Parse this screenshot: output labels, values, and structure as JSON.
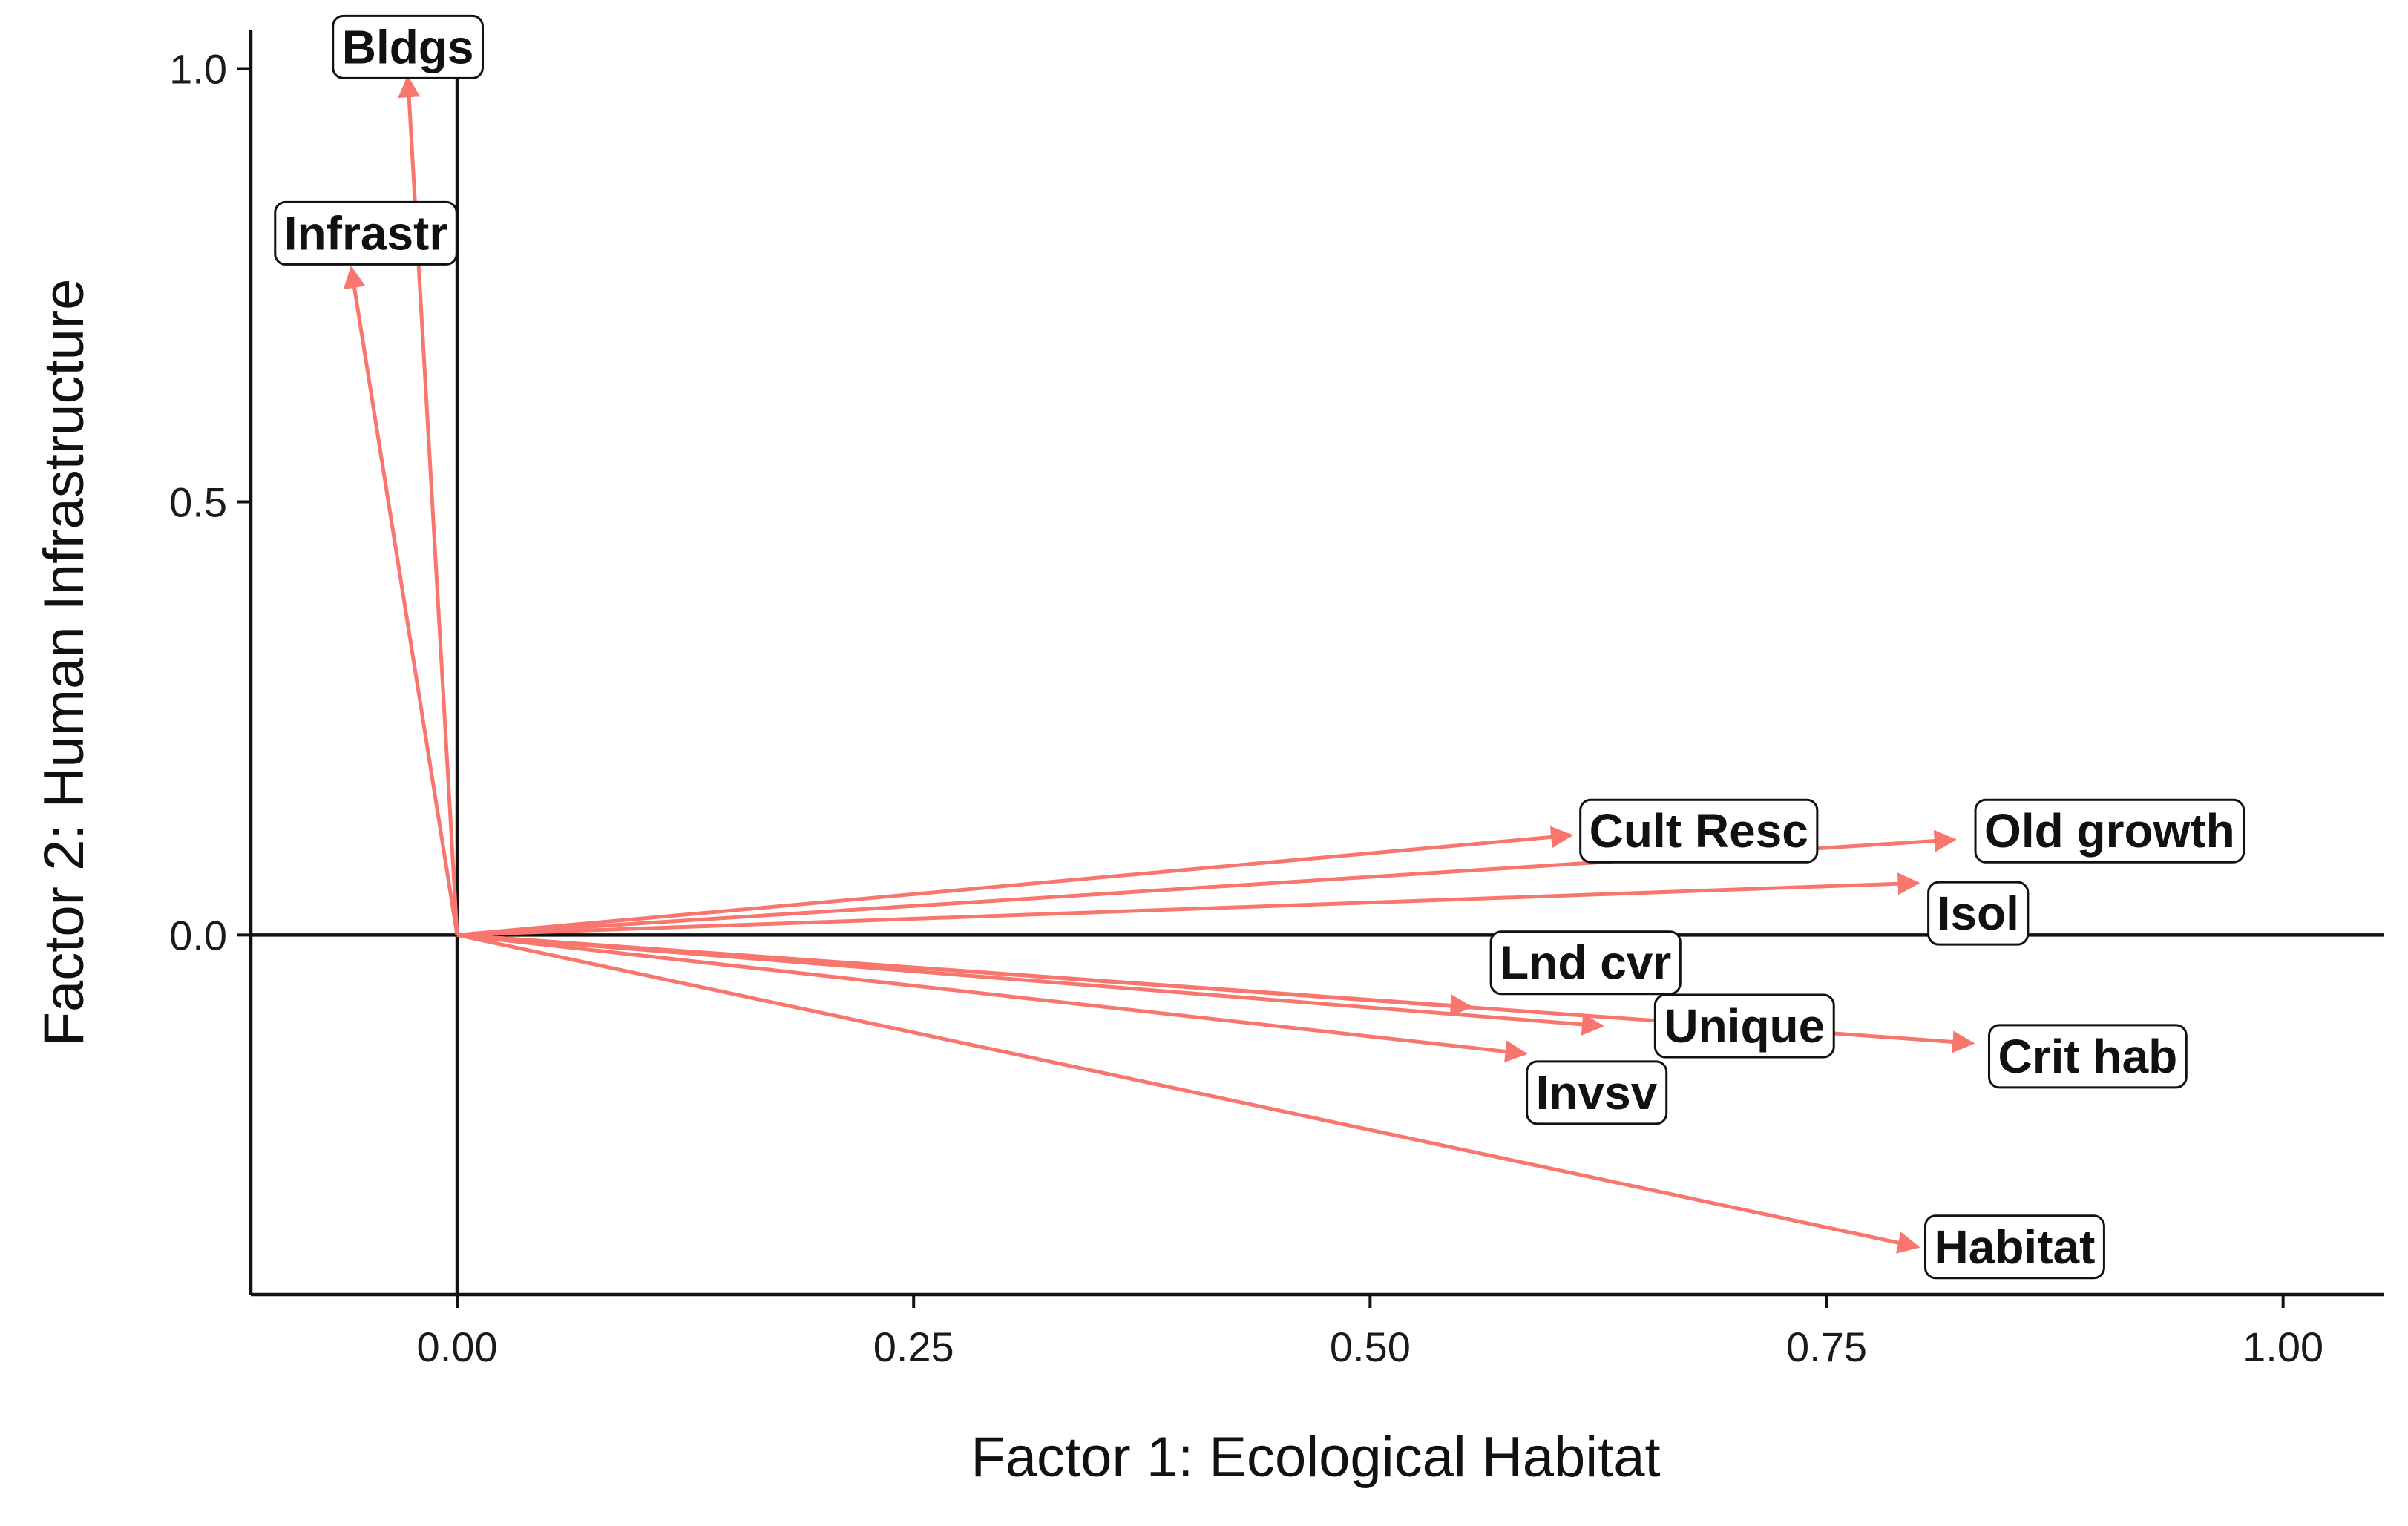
{
  "chart_data": {
    "type": "biplot",
    "title": "",
    "xlabel": "Factor 1: Ecological Habitat",
    "ylabel": "Factor 2: Human Infrastructure",
    "xlim": [
      -0.113,
      1.055
    ],
    "ylim": [
      -0.415,
      1.045
    ],
    "xticks": [
      0.0,
      0.25,
      0.5,
      0.75,
      1.0
    ],
    "xtick_labels": [
      "0.00",
      "0.25",
      "0.50",
      "0.75",
      "1.00"
    ],
    "yticks": [
      0.0,
      0.5,
      1.0
    ],
    "ytick_labels": [
      "0.0",
      "0.5",
      "1.0"
    ],
    "grid": false,
    "reference_lines": [
      "x = 0",
      "y = 0"
    ],
    "arrow_color": "#f8766d",
    "vectors": [
      {
        "label": "Bldgs",
        "x": -0.027,
        "y": 0.99,
        "label_x": -0.027,
        "label_y": 1.025
      },
      {
        "label": "Infrastr",
        "x": -0.058,
        "y": 0.77,
        "label_x": -0.05,
        "label_y": 0.81
      },
      {
        "label": "Cult Resc",
        "x": 0.61,
        "y": 0.115,
        "label_x": 0.68,
        "label_y": 0.12
      },
      {
        "label": "Old growth",
        "x": 0.82,
        "y": 0.11,
        "label_x": 0.905,
        "label_y": 0.12
      },
      {
        "label": "Isol",
        "x": 0.8,
        "y": 0.06,
        "label_x": 0.833,
        "label_y": 0.025
      },
      {
        "label": "Lnd cvr",
        "x": 0.555,
        "y": -0.083,
        "label_x": 0.618,
        "label_y": -0.032
      },
      {
        "label": "Unique",
        "x": 0.627,
        "y": -0.105,
        "label_x": 0.705,
        "label_y": -0.105
      },
      {
        "label": "Crit hab",
        "x": 0.83,
        "y": -0.125,
        "label_x": 0.893,
        "label_y": -0.14
      },
      {
        "label": "Invsv",
        "x": 0.585,
        "y": -0.137,
        "label_x": 0.624,
        "label_y": -0.182
      },
      {
        "label": "Habitat",
        "x": 0.8,
        "y": -0.36,
        "label_x": 0.853,
        "label_y": -0.36
      }
    ]
  }
}
